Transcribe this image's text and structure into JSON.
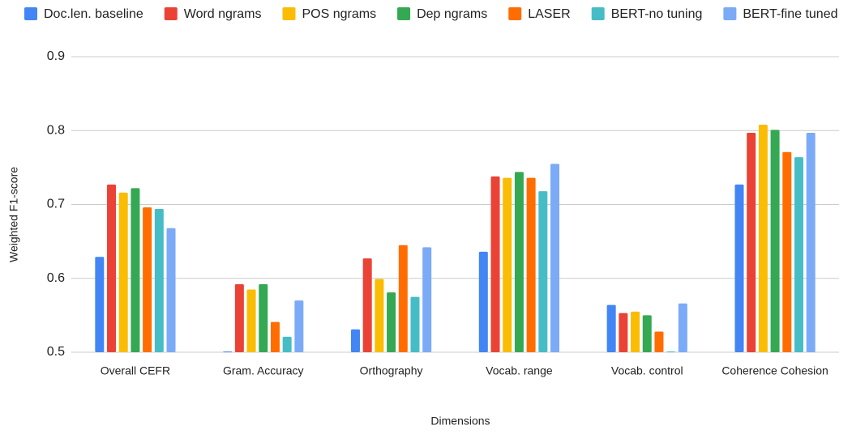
{
  "chart_data": {
    "type": "bar",
    "x_label": "Dimensions",
    "y_label": "Weighted F1-score",
    "categories": [
      "Overall CEFR",
      "Gram. Accuracy",
      "Orthography",
      "Vocab. range",
      "Vocab. control",
      "Coherence Cohesion"
    ],
    "series": [
      {
        "name": "Doc.len. baseline",
        "color": "#4285f4",
        "values": [
          0.629,
          0.501,
          0.531,
          0.636,
          0.564,
          0.727
        ]
      },
      {
        "name": "Word ngrams",
        "color": "#ea4335",
        "values": [
          0.727,
          0.592,
          0.627,
          0.738,
          0.553,
          0.797
        ]
      },
      {
        "name": "POS ngrams",
        "color": "#fbbc04",
        "values": [
          0.716,
          0.585,
          0.599,
          0.736,
          0.555,
          0.808
        ]
      },
      {
        "name": "Dep ngrams",
        "color": "#34a853",
        "values": [
          0.722,
          0.592,
          0.581,
          0.744,
          0.55,
          0.801
        ]
      },
      {
        "name": "LASER",
        "color": "#ff6d01",
        "values": [
          0.696,
          0.541,
          0.645,
          0.736,
          0.528,
          0.771
        ]
      },
      {
        "name": "BERT-no tuning",
        "color": "#46bdc6",
        "values": [
          0.694,
          0.521,
          0.575,
          0.718,
          0.501,
          0.764
        ]
      },
      {
        "name": "BERT-fine tuned",
        "color": "#7baaf7",
        "values": [
          0.668,
          0.57,
          0.642,
          0.755,
          0.566,
          0.797
        ]
      }
    ],
    "ylim": [
      0.5,
      0.9
    ],
    "yticks": [
      0.5,
      0.6,
      0.7,
      0.8,
      0.9
    ],
    "grid": true,
    "legend": "top"
  }
}
